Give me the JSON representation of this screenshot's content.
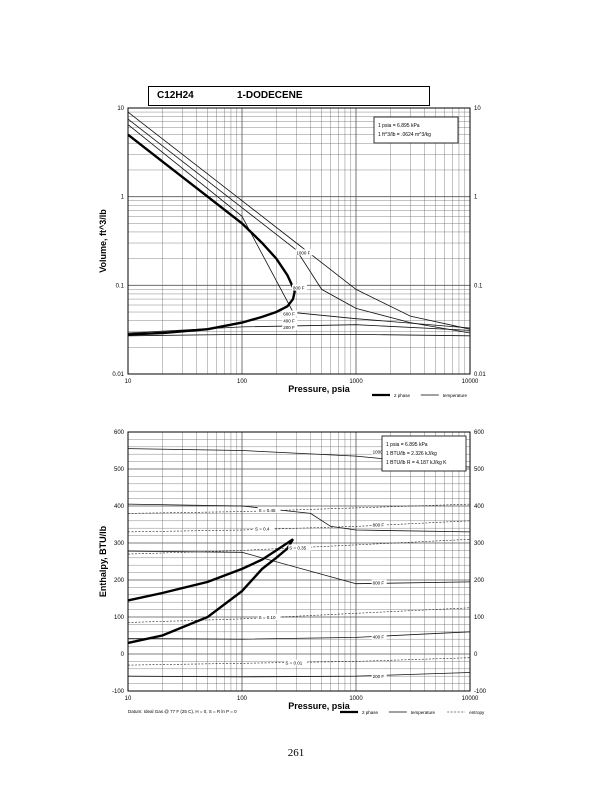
{
  "header": {
    "formula": "C12H24",
    "compound": "1-DODECENE"
  },
  "page_number": "261",
  "chart_data": [
    {
      "type": "line",
      "xlabel": "Pressure,  psia",
      "ylabel": "Volume,  ft^3/lb",
      "x_scale": "log",
      "y_scale": "log",
      "xlim": [
        10,
        10000
      ],
      "ylim": [
        0.01,
        10
      ],
      "grid": true,
      "x_tick_labels": [
        "10",
        "100",
        "1000",
        "10000"
      ],
      "y_tick_labels": [
        "10",
        "1",
        "0.1",
        "0.01"
      ],
      "right_tick_labels": [
        "10",
        "1",
        "0.1",
        "0.01"
      ],
      "conversions": [
        "1 psia  =  6.895 kPa",
        "1 ft^3/lb  =  .0624 m^3/kg"
      ],
      "legend": [
        "2 phase",
        "temperature"
      ],
      "two_phase": {
        "x": [
          10,
          20,
          50,
          100,
          150,
          200,
          250,
          280,
          290,
          280,
          250,
          200,
          150,
          100,
          50,
          20,
          10
        ],
        "y": [
          5,
          2.5,
          1.0,
          0.5,
          0.3,
          0.2,
          0.13,
          0.095,
          0.085,
          0.07,
          0.058,
          0.05,
          0.044,
          0.038,
          0.032,
          0.029,
          0.028
        ]
      },
      "series": [
        {
          "name": "1000 F",
          "x": [
            10,
            100,
            300,
            600,
            1000,
            3000,
            10000
          ],
          "y": [
            9,
            0.9,
            0.3,
            0.15,
            0.09,
            0.045,
            0.032
          ]
        },
        {
          "name": "800 F",
          "x": [
            10,
            100,
            300,
            500,
            1000,
            3000,
            10000
          ],
          "y": [
            7.5,
            0.75,
            0.25,
            0.09,
            0.055,
            0.038,
            0.029
          ]
        },
        {
          "name": "600 F",
          "x": [
            10,
            100,
            280,
            300,
            1000,
            10000
          ],
          "y": [
            6.5,
            0.6,
            0.05,
            0.049,
            0.042,
            0.033
          ]
        },
        {
          "name": "400 F",
          "x": [
            10,
            100,
            1000,
            10000
          ],
          "y": [
            0.029,
            0.034,
            0.036,
            0.031
          ]
        },
        {
          "name": "200 F",
          "x": [
            10,
            100,
            1000,
            10000
          ],
          "y": [
            0.027,
            0.028,
            0.028,
            0.027
          ]
        }
      ]
    },
    {
      "type": "line",
      "xlabel": "Pressure,  psia",
      "ylabel": "Enthalpy,  BTU/lb",
      "x_scale": "log",
      "xlim": [
        10,
        10000
      ],
      "ylim": [
        -100,
        600
      ],
      "grid": true,
      "x_tick_labels": [
        "10",
        "100",
        "1000",
        "10000"
      ],
      "y_tick_labels": [
        "600",
        "500",
        "400",
        "300",
        "200",
        "100",
        "0",
        "-100"
      ],
      "right_tick_labels": [
        "600",
        "500",
        "400",
        "300",
        "200",
        "100",
        "0",
        "-100"
      ],
      "conversions": [
        "1 psia  =  6.895 kPa",
        "1 BTU/lb  =  2.326 kJ/kg",
        "1 BTU/lb R  =  4.187 kJ/kg K"
      ],
      "legend": [
        "2 phase",
        "temperature",
        "entropy"
      ],
      "footnote": "Datum: Ideal Gas @ 77 F (25 C), H = 0, S = R ln P = 0",
      "two_phase": {
        "x": [
          10,
          20,
          50,
          100,
          150,
          200,
          250,
          280,
          250,
          200,
          150,
          100,
          50,
          20,
          10
        ],
        "y": [
          145,
          165,
          195,
          230,
          255,
          280,
          300,
          310,
          285,
          260,
          230,
          170,
          100,
          50,
          30
        ]
      },
      "series": [
        {
          "name": "1000 F",
          "x": [
            10,
            100,
            1000,
            10000
          ],
          "y": [
            555,
            550,
            535,
            505
          ]
        },
        {
          "name": "800 F",
          "x": [
            10,
            100,
            400,
            600,
            1000,
            10000
          ],
          "y": [
            405,
            400,
            380,
            345,
            335,
            330
          ]
        },
        {
          "name": "600 F",
          "x": [
            10,
            100,
            1000,
            10000
          ],
          "y": [
            278,
            275,
            190,
            195
          ]
        },
        {
          "name": "400 F",
          "x": [
            10,
            100,
            1000,
            10000
          ],
          "y": [
            42,
            40,
            45,
            60
          ]
        },
        {
          "name": "200 F",
          "x": [
            10,
            100,
            1000,
            10000
          ],
          "y": [
            -60,
            -62,
            -60,
            -50
          ]
        }
      ],
      "entropy_lines": [
        {
          "name": "S = 0.45",
          "x": [
            10,
            100,
            1000,
            10000
          ],
          "y": [
            380,
            385,
            395,
            405
          ]
        },
        {
          "name": "S = 0.4",
          "x": [
            10,
            100,
            1000,
            10000
          ],
          "y": [
            330,
            335,
            345,
            360
          ]
        },
        {
          "name": "S = 0.35",
          "x": [
            10,
            100,
            1000,
            10000
          ],
          "y": [
            270,
            280,
            295,
            310
          ]
        },
        {
          "name": "S = 0.10",
          "x": [
            10,
            100,
            1000,
            10000
          ],
          "y": [
            85,
            95,
            110,
            125
          ]
        },
        {
          "name": "S = 0.01",
          "x": [
            10,
            100,
            1000,
            10000
          ],
          "y": [
            -30,
            -25,
            -20,
            -10
          ]
        }
      ]
    }
  ],
  "labels": {
    "top_curve_labels": [
      "1000 F",
      "800 F",
      "600 F",
      "400 F",
      "200 F"
    ],
    "bottom_curve_labels": [
      "1000 F",
      "800 F",
      "600 F",
      "400 F",
      "200 F"
    ],
    "bottom_entropy_labels": [
      "S = 0.45",
      "S = 0.4",
      "S = 0.35",
      "S = 0.10",
      "S = 0.01"
    ]
  }
}
